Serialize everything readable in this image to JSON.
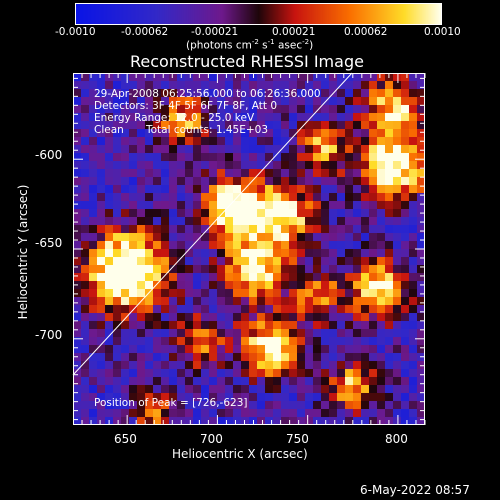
{
  "colorbar": {
    "tick_labels": [
      "-0.0010",
      "-0.00062",
      "-0.00021",
      "0.00021",
      "0.00062",
      "0.0010"
    ],
    "units_text": "(photons cm",
    "units_exp1": "-2",
    "units_mid": " s",
    "units_exp2": "-1",
    "units_end": " asec",
    "units_exp3": "-2",
    "units_close": ")"
  },
  "plot": {
    "title": "Reconstructed RHESSI Image",
    "xlabel": "Heliocentric X (arcsec)",
    "ylabel": "Heliocentric Y (arcsec)",
    "x_ticks": [
      "650",
      "700",
      "750",
      "800"
    ],
    "y_ticks": [
      "-600",
      "-650",
      "-700"
    ],
    "xlim": [
      620,
      815
    ],
    "ylim": [
      -748,
      -552
    ]
  },
  "info": {
    "line1": "29-Apr-2008 06:25:56.000 to 06:26:36.000",
    "line2": "Detectors: 3F 4F 5F 6F 7F 8F, Att 0",
    "line3": "Energy Range: 12.0 - 25.0 keV",
    "line4_a": "Clean",
    "line4_b": "Total counts: 1.45E+03",
    "peak": "Position of Peak = [726,-623]"
  },
  "footer": {
    "timestamp": "6-May-2022 08:57"
  }
}
